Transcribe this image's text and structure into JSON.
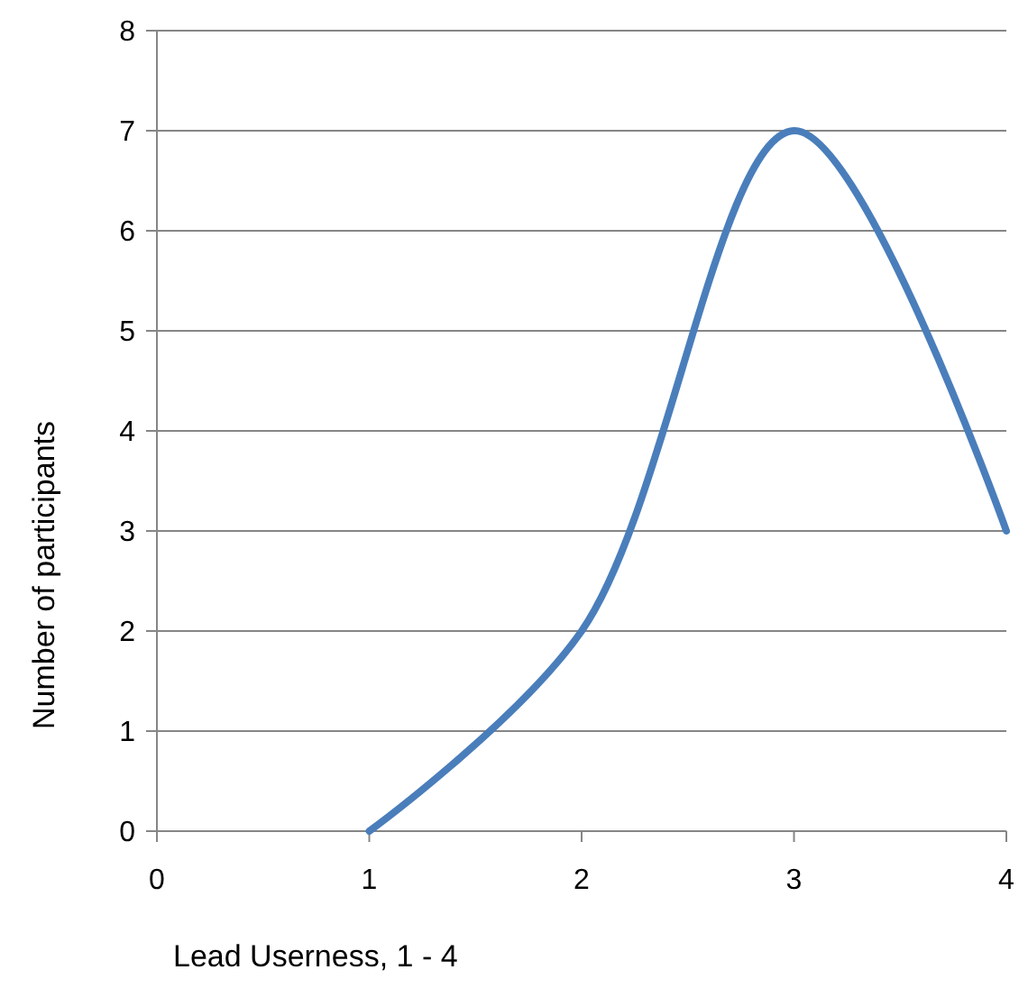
{
  "chart_data": {
    "type": "line",
    "xlabel": "Lead Userness, 1 - 4",
    "ylabel": "Number of participants",
    "x": [
      1,
      2,
      3,
      4
    ],
    "series": [
      {
        "color": "#4a7ebb",
        "values": [
          0,
          2,
          7,
          3
        ]
      }
    ],
    "xlim": [
      0,
      4
    ],
    "xticks": [
      0,
      1,
      2,
      3,
      4
    ],
    "ylim": [
      0,
      8
    ],
    "yticks": [
      0,
      1,
      2,
      3,
      4,
      5,
      6,
      7,
      8
    ],
    "grid": "y",
    "marker": "none",
    "line_style": "solid"
  }
}
